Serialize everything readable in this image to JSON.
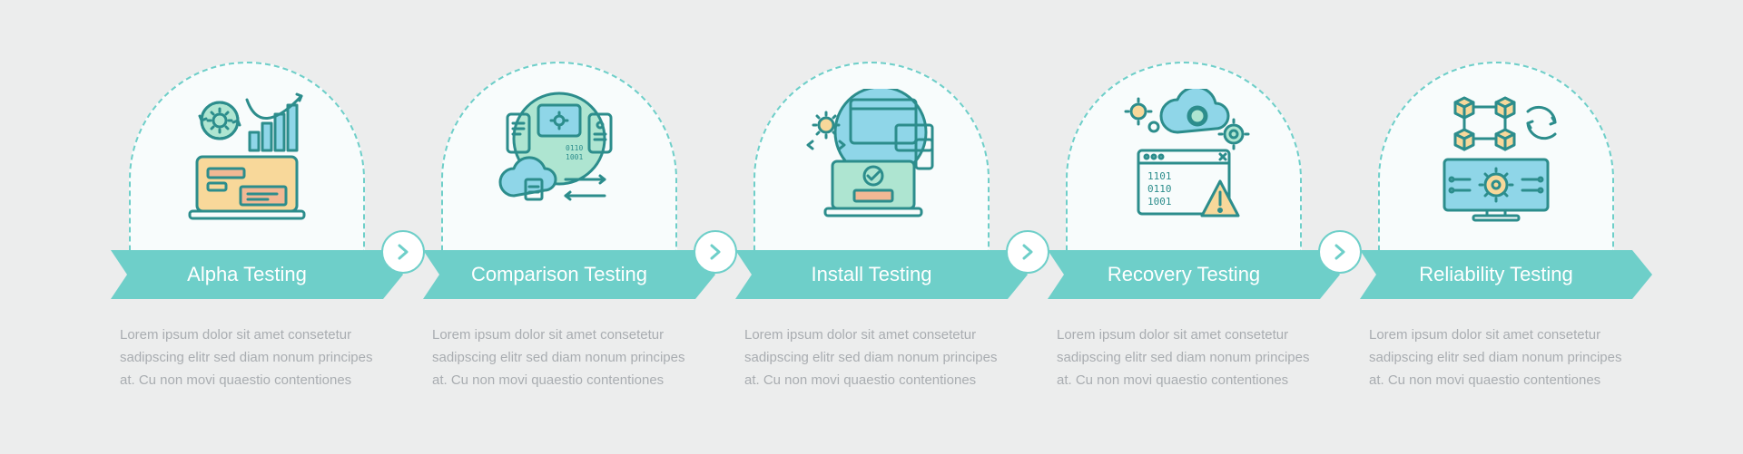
{
  "colors": {
    "page_bg": "#eceded",
    "arch_fill": "#f8fcfc",
    "arch_border": "#6ecfc9",
    "ribbon_bg": "#6ecfc9",
    "ribbon_text": "#ffffff",
    "desc_text": "#a9adb1",
    "connector_border": "#6ecfc9",
    "connector_bg": "#ffffff",
    "connector_arrow": "#6ecfc9",
    "icon_stroke": "#2c8d8c",
    "icon_accent_blue": "#8fd6e8",
    "icon_accent_green": "#aee5d1",
    "icon_accent_yellow": "#f8d89a",
    "icon_accent_orange": "#f2b894"
  },
  "typography": {
    "ribbon_fontsize": 22,
    "desc_fontsize": 15,
    "desc_lineheight": 1.65
  },
  "steps": [
    {
      "title": "Alpha Testing",
      "icon": "alpha-testing-icon",
      "desc": "Lorem ipsum dolor sit amet consetetur sadipscing elitr sed diam nonum principes at. Cu non movi quaestio contentiones"
    },
    {
      "title": "Comparison Testing",
      "icon": "comparison-testing-icon",
      "desc": "Lorem ipsum dolor sit amet consetetur sadipscing elitr sed diam nonum principes at. Cu non movi quaestio contentiones"
    },
    {
      "title": "Install Testing",
      "icon": "install-testing-icon",
      "desc": "Lorem ipsum dolor sit amet consetetur sadipscing elitr sed diam nonum principes at. Cu non movi quaestio contentiones"
    },
    {
      "title": "Recovery Testing",
      "icon": "recovery-testing-icon",
      "desc": "Lorem ipsum dolor sit amet consetetur sadipscing elitr sed diam nonum principes at. Cu non movi quaestio contentiones"
    },
    {
      "title": "Reliability Testing",
      "icon": "reliability-testing-icon",
      "desc": "Lorem ipsum dolor sit amet consetetur sadipscing elitr sed diam nonum principes at. Cu non movi quaestio contentiones"
    }
  ]
}
